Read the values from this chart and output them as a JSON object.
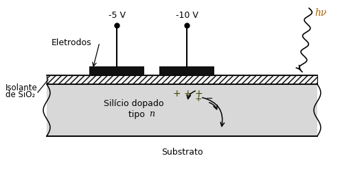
{
  "figsize": [
    4.98,
    2.47
  ],
  "dpi": 100,
  "bg_color": "#ffffff",
  "label_5v": "-5 V",
  "label_10v": "-10 V",
  "label_eletrodos": "Eletrodos",
  "label_isolante_line1": "Isolante",
  "label_isolante_line2": "de SiO₂",
  "label_silicio_line1": "Silício dopado",
  "label_silicio_line2": "tipo ",
  "label_n": "n",
  "label_substrato": "Substrato",
  "label_hv": "hν",
  "electrode_color": "#111111",
  "silicon_color": "#d8d8d8",
  "text_color": "#000000",
  "hv_color": "#b06000",
  "plus_color": "#555500"
}
